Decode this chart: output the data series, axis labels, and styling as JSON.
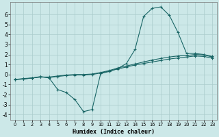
{
  "xlabel": "Humidex (Indice chaleur)",
  "bg_color": "#cce8e8",
  "grid_color": "#aacccc",
  "line_color": "#1a6666",
  "line1_x": [
    0,
    1,
    2,
    3,
    4,
    5,
    6,
    7,
    8,
    9,
    10,
    11,
    12,
    13,
    14,
    15,
    16,
    17,
    18,
    19,
    20,
    21,
    22,
    23
  ],
  "line1_y": [
    -0.5,
    -0.4,
    -0.35,
    -0.2,
    -0.35,
    -1.5,
    -1.8,
    -2.5,
    -3.7,
    -3.5,
    0.1,
    0.3,
    0.6,
    1.1,
    2.5,
    5.8,
    6.6,
    6.75,
    5.9,
    4.2,
    2.1,
    2.1,
    2.0,
    1.8
  ],
  "line2_x": [
    0,
    1,
    2,
    3,
    4,
    5,
    6,
    7,
    8,
    9,
    10,
    11,
    12,
    13,
    14,
    15,
    16,
    17,
    18,
    19,
    20,
    21,
    22,
    23
  ],
  "line2_y": [
    -0.5,
    -0.45,
    -0.35,
    -0.25,
    -0.25,
    -0.15,
    -0.05,
    0.0,
    0.0,
    0.05,
    0.2,
    0.4,
    0.65,
    0.85,
    1.05,
    1.25,
    1.45,
    1.6,
    1.75,
    1.85,
    1.9,
    2.0,
    1.95,
    1.75
  ],
  "line3_x": [
    0,
    1,
    2,
    3,
    4,
    5,
    6,
    7,
    8,
    9,
    10,
    11,
    12,
    13,
    14,
    15,
    16,
    17,
    18,
    19,
    20,
    21,
    22,
    23
  ],
  "line3_y": [
    -0.5,
    -0.45,
    -0.35,
    -0.25,
    -0.3,
    -0.2,
    -0.1,
    -0.05,
    -0.05,
    0.0,
    0.15,
    0.35,
    0.55,
    0.75,
    0.95,
    1.1,
    1.25,
    1.4,
    1.55,
    1.65,
    1.75,
    1.85,
    1.8,
    1.65
  ],
  "ylim": [
    -4.5,
    7.2
  ],
  "xlim": [
    -0.5,
    23.5
  ],
  "yticks": [
    -4,
    -3,
    -2,
    -1,
    0,
    1,
    2,
    3,
    4,
    5,
    6
  ],
  "xticks": [
    0,
    1,
    2,
    3,
    4,
    5,
    6,
    7,
    8,
    9,
    10,
    11,
    12,
    13,
    14,
    15,
    16,
    17,
    18,
    19,
    20,
    21,
    22,
    23
  ]
}
